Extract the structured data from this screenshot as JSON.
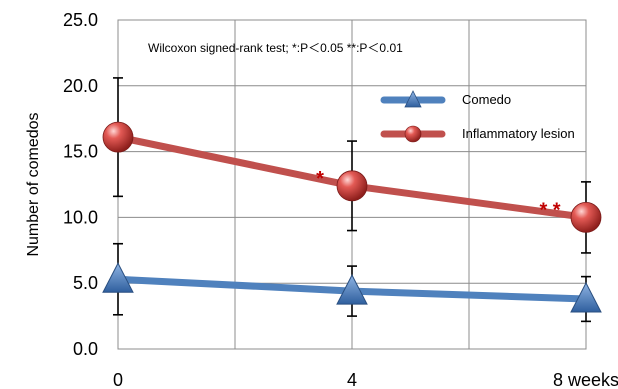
{
  "chart_data": {
    "type": "line",
    "title": "",
    "annotation": "Wilcoxon signed-rank test; *:P＜0.05  **:P＜0.01",
    "xlabel": "",
    "ylabel": "Number of comedos",
    "x": [
      0,
      4,
      8
    ],
    "x_tick_labels": [
      "0",
      "4",
      "8 weeks"
    ],
    "ylim": [
      0,
      25
    ],
    "y_ticks": [
      "0.0",
      "5.0",
      "10.0",
      "15.0",
      "20.0",
      "25.0"
    ],
    "grid": true,
    "legend_position": "top-right",
    "series": [
      {
        "name": "Comedo",
        "values": [
          5.3,
          4.4,
          3.8
        ],
        "error": [
          2.7,
          1.9,
          1.7
        ],
        "color": "#4f81bd",
        "marker": "triangle"
      },
      {
        "name": "Inflammatory lesion",
        "values": [
          16.1,
          12.4,
          10.0
        ],
        "error": [
          4.5,
          3.4,
          2.7
        ],
        "color": "#c0504d",
        "marker": "sphere"
      }
    ],
    "significance_marks": [
      {
        "series": "Inflammatory lesion",
        "x": 4,
        "label": "*"
      },
      {
        "series": "Inflammatory lesion",
        "x": 8,
        "label": "* *"
      }
    ]
  }
}
